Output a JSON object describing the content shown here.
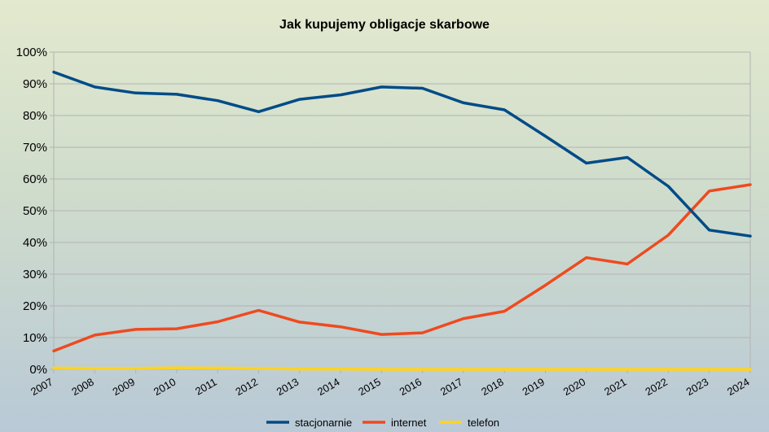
{
  "chart_data": {
    "type": "line",
    "title": "Jak kupujemy obligacje skarbowe",
    "x": [
      "2007",
      "2008",
      "2009",
      "2010",
      "2011",
      "2012",
      "2013",
      "2014",
      "2015",
      "2016",
      "2017",
      "2018",
      "2019",
      "2020",
      "2021",
      "2022",
      "2023",
      "2024"
    ],
    "y_ticks": [
      "0%",
      "10%",
      "20%",
      "30%",
      "40%",
      "50%",
      "60%",
      "70%",
      "80%",
      "90%",
      "100%"
    ],
    "ylim": [
      0,
      100
    ],
    "grid": true,
    "legend_position": "bottom",
    "series": [
      {
        "name": "stacjonarnie",
        "color": "#004b87",
        "values": [
          93.7,
          89.0,
          87.1,
          86.7,
          84.7,
          81.2,
          85.1,
          86.5,
          89.0,
          88.6,
          84.0,
          81.8,
          73.5,
          65.0,
          66.8,
          57.7,
          43.9,
          42.0
        ]
      },
      {
        "name": "internet",
        "color": "#ee4a1f",
        "values": [
          5.8,
          10.8,
          12.6,
          12.8,
          15.0,
          18.6,
          14.9,
          13.4,
          11.0,
          11.5,
          16.0,
          18.3,
          26.5,
          35.2,
          33.2,
          42.3,
          56.2,
          58.2
        ]
      },
      {
        "name": "telefon",
        "color": "#ffd320",
        "values": [
          0.4,
          0.3,
          0.3,
          0.5,
          0.4,
          0.3,
          0.1,
          0.1,
          0.0,
          0.0,
          0.0,
          0.0,
          0.0,
          0.0,
          0.0,
          0.0,
          0.0,
          0.0
        ]
      }
    ]
  }
}
